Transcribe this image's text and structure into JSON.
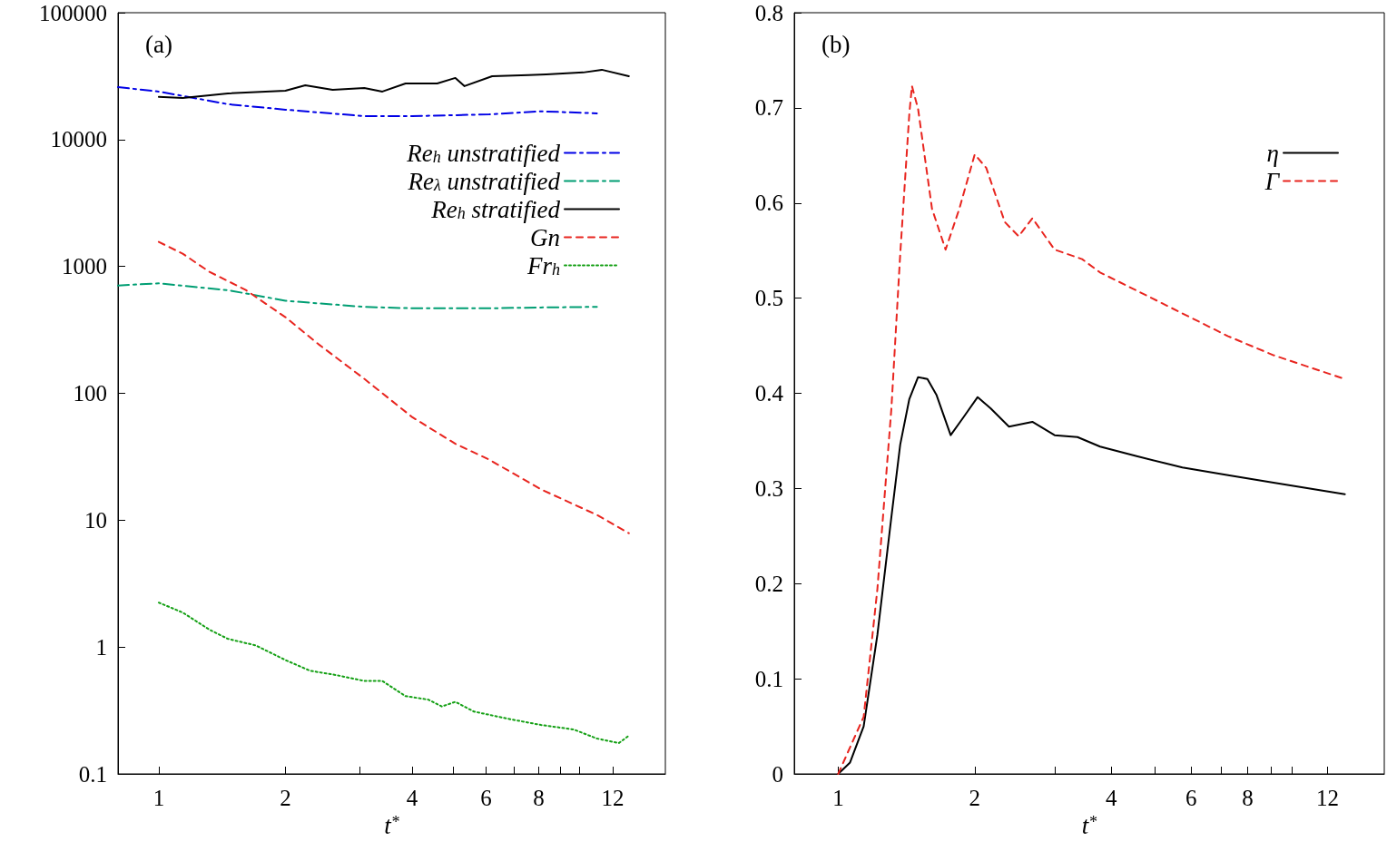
{
  "chart_data": [
    {
      "type": "line",
      "title": "(a)",
      "xlabel": "t$^{*}$",
      "log": "xy",
      "xlim": [
        0.8,
        16
      ],
      "ylim": [
        0.1,
        100000
      ],
      "marker": "none",
      "legend": "top right",
      "xticks": [
        1,
        2,
        {
          "value": 3,
          "label": null
        },
        4,
        {
          "value": 5,
          "label": null
        },
        6,
        {
          "value": 7,
          "label": null
        },
        8,
        {
          "value": 9,
          "label": null
        },
        {
          "value": 10,
          "label": null
        },
        12
      ],
      "yticks": [
        0.1,
        1,
        10,
        100,
        1000,
        10000,
        100000
      ],
      "series": [
        {
          "name": "Re$_{h}$ unstratified",
          "color": "#0000e6",
          "line_style": "dashdot",
          "x": [
            0.8,
            1,
            1.46,
            2,
            3.08,
            4,
            6.1,
            8.1,
            11
          ],
          "values": [
            25900,
            23900,
            19000,
            17200,
            15300,
            15300,
            15800,
            16700,
            16100
          ]
        },
        {
          "name": "Re$_{λ}$ unstratified",
          "color": "#009e73",
          "line_style": "dashdot",
          "x": [
            0.8,
            1,
            1.46,
            2,
            3.08,
            4,
            6.1,
            8.1,
            11
          ],
          "values": [
            708,
            736,
            650,
            536,
            480,
            468,
            468,
            475,
            480
          ]
        },
        {
          "name": "Re$_{h}$ stratified",
          "color": "#000000",
          "line_style": "solid",
          "x": [
            1,
            1.14,
            1.46,
            2,
            2.23,
            2.59,
            3.08,
            3.4,
            3.86,
            4.59,
            5.07,
            5.33,
            6.2,
            7.56,
            8.34,
            10.2,
            11.3,
            13.1
          ],
          "values": [
            21700,
            21300,
            23100,
            24300,
            26800,
            24700,
            25500,
            23900,
            27700,
            27700,
            30600,
            26400,
            31600,
            32200,
            32700,
            33800,
            35500,
            31600
          ]
        },
        {
          "name": "Gn",
          "color": "#e8251f",
          "line_style": "dashed",
          "x": [
            1,
            1.14,
            1.32,
            1.61,
            2,
            2.4,
            3.08,
            4,
            5.07,
            6.1,
            8.1,
            11,
            13.1
          ],
          "values": [
            1560,
            1260,
            906,
            652,
            398,
            243,
            130,
            65,
            40,
            30,
            17.5,
            11,
            7.9
          ]
        },
        {
          "name": "Fr$_{h}$",
          "color": "#14a014",
          "line_style": "dotted",
          "x": [
            1,
            1.14,
            1.32,
            1.46,
            1.7,
            2,
            2.29,
            2.65,
            3.08,
            3.4,
            3.86,
            4.37,
            4.71,
            5.07,
            5.61,
            6.84,
            8.1,
            9.69,
            11,
            12.4,
            13.1
          ],
          "values": [
            2.24,
            1.87,
            1.37,
            1.16,
            1.03,
            0.79,
            0.65,
            0.6,
            0.54,
            0.54,
            0.41,
            0.385,
            0.34,
            0.37,
            0.31,
            0.27,
            0.243,
            0.224,
            0.19,
            0.175,
            0.2
          ]
        }
      ]
    },
    {
      "type": "line",
      "title": "(b)",
      "xlabel": "t$^{*}$",
      "log": "x",
      "xlim": [
        0.8,
        16
      ],
      "ylim": [
        0,
        0.8
      ],
      "marker": "none",
      "legend": "top right",
      "xticks": [
        1,
        2,
        {
          "value": 3,
          "label": null
        },
        4,
        {
          "value": 5,
          "label": null
        },
        6,
        {
          "value": 7,
          "label": null
        },
        8,
        {
          "value": 9,
          "label": null
        },
        {
          "value": 10,
          "label": null
        },
        12
      ],
      "yticks": [
        0,
        0.1,
        0.2,
        0.3,
        0.4,
        0.5,
        0.6,
        0.7,
        0.8
      ],
      "series": [
        {
          "name": "η",
          "color": "#000000",
          "line_style": "solid",
          "x": [
            1,
            1.062,
            1.138,
            1.22,
            1.31,
            1.37,
            1.435,
            1.5,
            1.573,
            1.648,
            1.77,
            1.89,
            2.03,
            2.17,
            2.38,
            2.68,
            3.0,
            3.37,
            3.78,
            4.55,
            5.74,
            7.24,
            9.12,
            13.1
          ],
          "values": [
            0,
            0.012,
            0.05,
            0.146,
            0.27,
            0.346,
            0.394,
            0.417,
            0.415,
            0.398,
            0.356,
            0.375,
            0.396,
            0.384,
            0.365,
            0.37,
            0.356,
            0.354,
            0.344,
            0.334,
            0.322,
            0.314,
            0.306,
            0.294
          ]
        },
        {
          "name": "Γ",
          "color": "#e8251f",
          "line_style": "dashed",
          "x": [
            1,
            1.138,
            1.22,
            1.31,
            1.37,
            1.435,
            1.454,
            1.5,
            1.61,
            1.725,
            1.85,
            2.0,
            2.12,
            2.33,
            2.5,
            2.68,
            3.0,
            3.45,
            3.78,
            4.55,
            5.74,
            7.24,
            9.12,
            13.1
          ],
          "values": [
            0,
            0.06,
            0.194,
            0.384,
            0.546,
            0.694,
            0.723,
            0.699,
            0.594,
            0.551,
            0.594,
            0.651,
            0.637,
            0.58,
            0.565,
            0.584,
            0.551,
            0.541,
            0.527,
            0.508,
            0.484,
            0.46,
            0.44,
            0.415
          ]
        }
      ]
    }
  ]
}
